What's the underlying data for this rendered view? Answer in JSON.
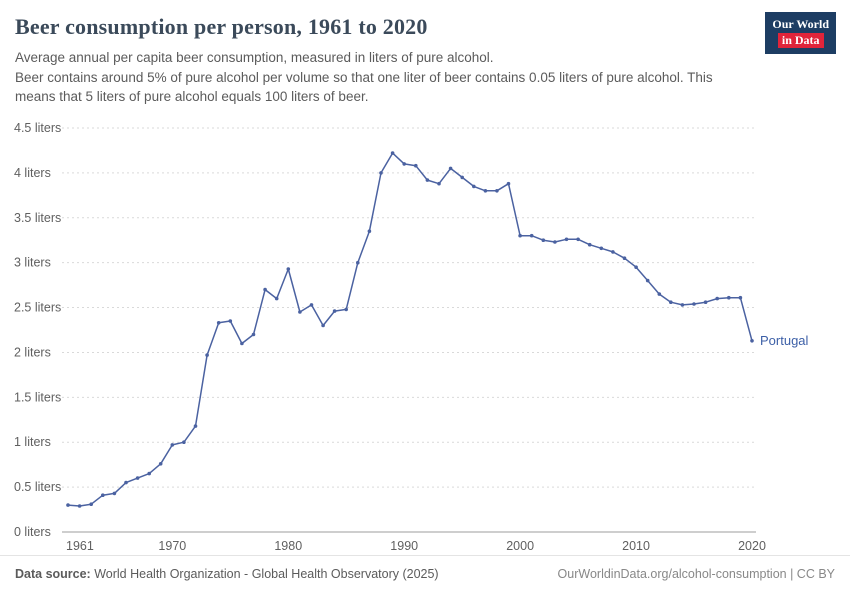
{
  "header": {
    "title": "Beer consumption per person, 1961 to 2020",
    "subtitle1": "Average annual per capita beer consumption, measured in liters of pure alcohol.",
    "subtitle2": "Beer contains around 5% of pure alcohol per volume so that one liter of beer contains 0.05 liters of pure alcohol. This means that 5 liters of pure alcohol equals 100 liters of beer.",
    "logo": {
      "line1": "Our World",
      "line2": "in Data",
      "bg": "#1d3d63",
      "accent": "#e0243a"
    }
  },
  "chart_data": {
    "type": "line",
    "title": "Beer consumption per person, 1961 to 2020",
    "xlabel": "",
    "ylabel": "liters of pure alcohol",
    "xlim": [
      1961,
      2020
    ],
    "ylim": [
      0,
      4.5
    ],
    "grid": true,
    "yticks": [
      0,
      0.5,
      1,
      1.5,
      2,
      2.5,
      3,
      3.5,
      4,
      4.5
    ],
    "ytick_labels": [
      "0 liters",
      "0.5 liters",
      "1 liters",
      "1.5 liters",
      "2 liters",
      "2.5 liters",
      "3 liters",
      "3.5 liters",
      "4 liters",
      "4.5 liters"
    ],
    "xticks": [
      1961,
      1970,
      1980,
      1990,
      2000,
      2010,
      2020
    ],
    "series": [
      {
        "name": "Portugal",
        "color": "#4b62a1",
        "label_color": "#3c5fa7",
        "x": [
          1961,
          1962,
          1963,
          1964,
          1965,
          1966,
          1967,
          1968,
          1969,
          1970,
          1971,
          1972,
          1973,
          1974,
          1975,
          1976,
          1977,
          1978,
          1979,
          1980,
          1981,
          1982,
          1983,
          1984,
          1985,
          1986,
          1987,
          1988,
          1989,
          1990,
          1991,
          1992,
          1993,
          1994,
          1995,
          1996,
          1997,
          1998,
          1999,
          2000,
          2001,
          2002,
          2003,
          2004,
          2005,
          2006,
          2007,
          2008,
          2009,
          2010,
          2011,
          2012,
          2013,
          2014,
          2015,
          2016,
          2017,
          2018,
          2019,
          2020
        ],
        "values": [
          0.3,
          0.29,
          0.31,
          0.41,
          0.43,
          0.55,
          0.6,
          0.65,
          0.76,
          0.97,
          1.0,
          1.18,
          1.97,
          2.33,
          2.35,
          2.1,
          2.2,
          2.7,
          2.6,
          2.93,
          2.45,
          2.53,
          2.3,
          2.46,
          2.48,
          3.0,
          3.35,
          4.0,
          4.22,
          4.1,
          4.08,
          3.92,
          3.88,
          4.05,
          3.95,
          3.85,
          3.8,
          3.8,
          3.88,
          3.3,
          3.3,
          3.25,
          3.23,
          3.26,
          3.26,
          3.2,
          3.16,
          3.12,
          3.05,
          2.95,
          2.8,
          2.65,
          2.56,
          2.53,
          2.54,
          2.56,
          2.6,
          2.61,
          2.61,
          2.13
        ]
      }
    ],
    "grid_color": "#d9d9d9",
    "zero_line_color": "#9e9e9e",
    "tick_label_color": "#606060"
  },
  "footer": {
    "source_label": "Data source:",
    "source_text": "World Health Organization - Global Health Observatory (2025)",
    "link": "OurWorldinData.org/alcohol-consumption",
    "license": " | CC BY"
  }
}
